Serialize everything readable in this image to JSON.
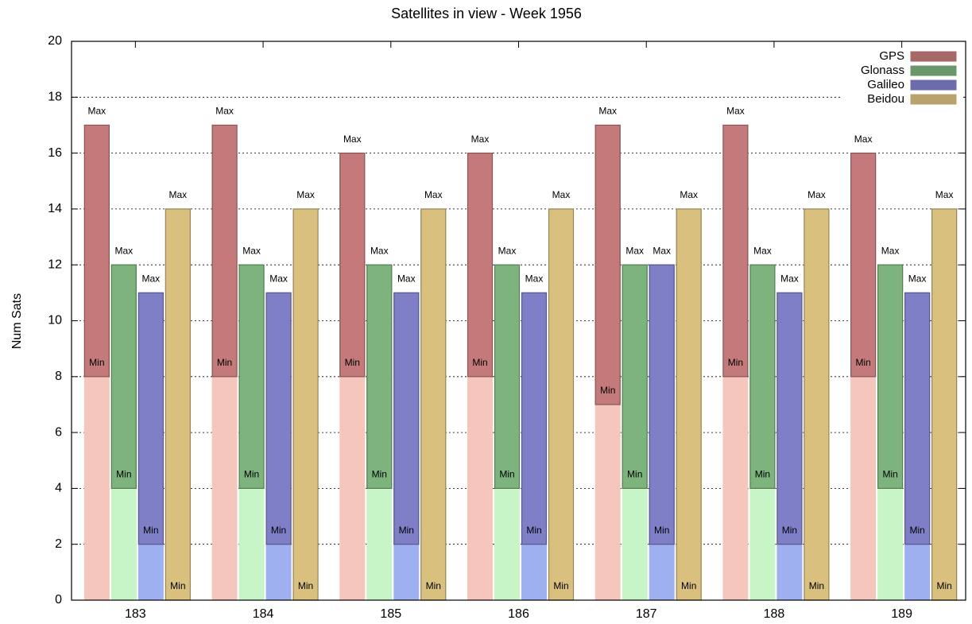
{
  "chart_data": {
    "type": "floating_bar",
    "title": "Satellites in view - Week 1956",
    "y_label": "Num Sats",
    "categories": [
      "183",
      "184",
      "185",
      "186",
      "187",
      "188",
      "189"
    ],
    "max_label": "Max",
    "min_label": "Min",
    "series": [
      {
        "name": "GPS",
        "color": "#c47a7a",
        "min_color": "#f5c6bc",
        "min_values": [
          8,
          8,
          8,
          8,
          7,
          8,
          8
        ],
        "max_values": [
          17,
          17,
          16,
          16,
          17,
          17,
          16
        ]
      },
      {
        "name": "Glonass",
        "color": "#7db37d",
        "min_color": "#c8f5c8",
        "min_values": [
          4,
          4,
          4,
          4,
          4,
          4,
          4
        ],
        "max_values": [
          12,
          12,
          12,
          12,
          12,
          12,
          12
        ]
      },
      {
        "name": "Galileo",
        "color": "#7f7fc8",
        "min_color": "#9fb0f0",
        "min_values": [
          2,
          2,
          2,
          2,
          2,
          2,
          2
        ],
        "max_values": [
          11,
          11,
          11,
          11,
          12,
          11,
          11
        ]
      },
      {
        "name": "Beidou",
        "color": "#d9c07f",
        "min_color": "#f0e0b0",
        "min_values": [
          0,
          0,
          0,
          0,
          0,
          0,
          0
        ],
        "max_values": [
          14,
          14,
          14,
          14,
          14,
          14,
          14
        ]
      }
    ],
    "ylim": [
      0,
      20
    ],
    "yticks": [
      0,
      2,
      4,
      6,
      8,
      10,
      12,
      14,
      16,
      18,
      20
    ],
    "grid": true,
    "legend": "upper right"
  }
}
